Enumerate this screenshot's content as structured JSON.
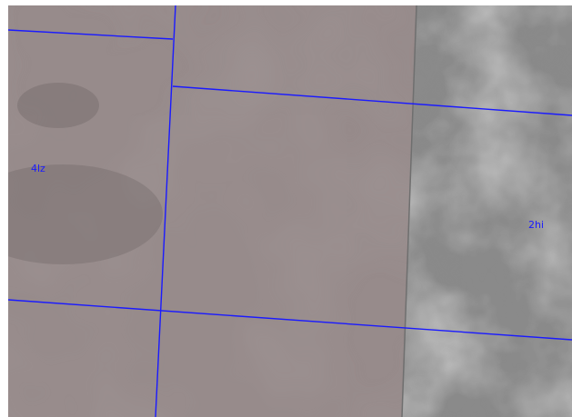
{
  "map": {
    "colors": {
      "parcel_line": "#1a1aff",
      "label_text": "#1a1aff",
      "tinted_imagery": "#978b8b",
      "plain_imagery": "#8a8a8a",
      "boundary_edge": "#6f6f6f"
    },
    "parcels": [
      {
        "label": "4lz"
      },
      {
        "label": "2hi"
      }
    ]
  }
}
